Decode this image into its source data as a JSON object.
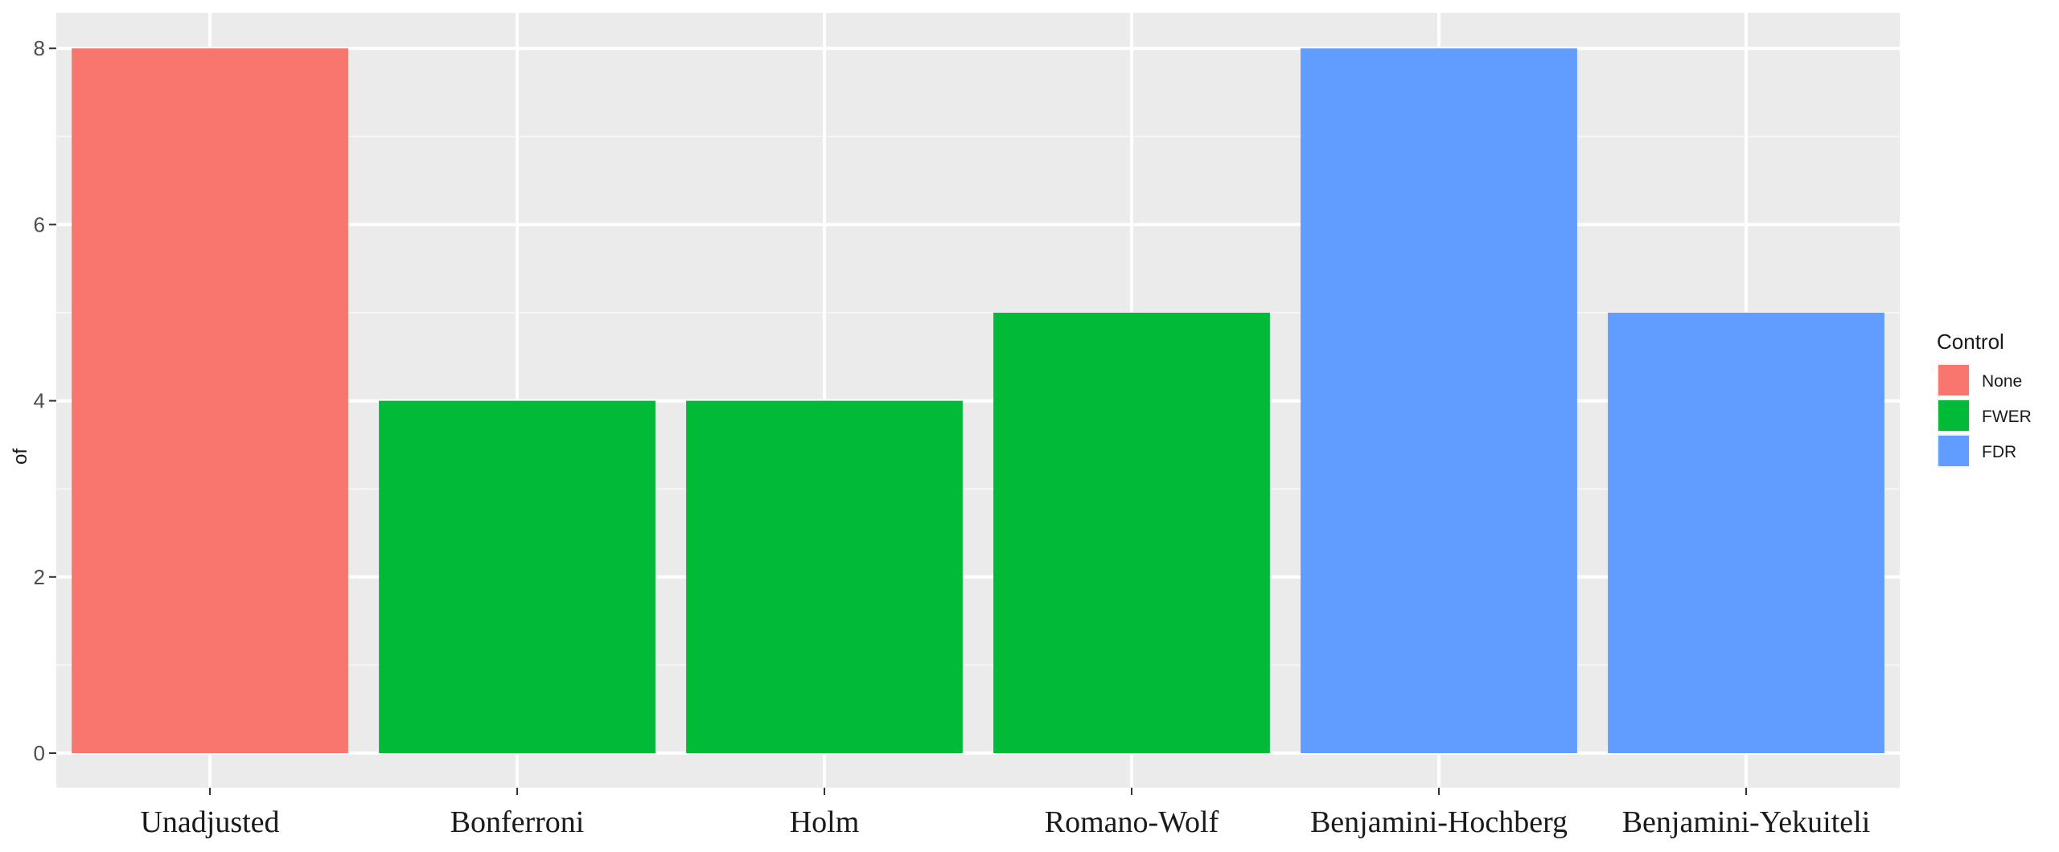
{
  "chart_data": {
    "type": "bar",
    "categories": [
      "Unadjusted",
      "Bonferroni",
      "Holm",
      "Romano-Wolf",
      "Benjamini-Hochberg",
      "Benjamini-Yekuiteli"
    ],
    "values": [
      8,
      4,
      4,
      5,
      8,
      5
    ],
    "groups": [
      "None",
      "FWER",
      "FWER",
      "FWER",
      "FDR",
      "FDR"
    ],
    "ylabel": "of",
    "ylim": [
      0,
      8.4
    ],
    "yticks": [
      "0",
      "2",
      "4",
      "6",
      "8"
    ],
    "grid": true,
    "legend": {
      "title": "Control",
      "position": "right",
      "entries": [
        {
          "label": "None",
          "color": "#F8766D"
        },
        {
          "label": "FWER",
          "color": "#00BA38"
        },
        {
          "label": "FDR",
          "color": "#619CFF"
        }
      ]
    },
    "colors": {
      "panel": "#EBEBEB",
      "grid": "#FFFFFF"
    }
  }
}
